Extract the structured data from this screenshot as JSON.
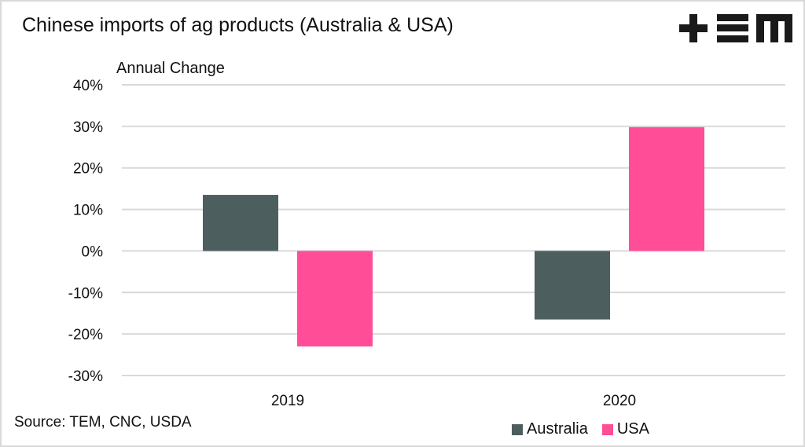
{
  "header": {
    "title": "Chinese imports of ag products (Australia & USA)",
    "logo": "tem-logo"
  },
  "source": "Source: TEM, CNC, USDA",
  "colors": {
    "australia": "#4d5e5f",
    "usa": "#ff4d97",
    "grid": "#d9d9d9"
  },
  "chart_data": {
    "type": "bar",
    "title": "Chinese imports of ag products (Australia & USA)",
    "xlabel": "",
    "ylabel": "Annual Change",
    "categories": [
      "2019",
      "2020"
    ],
    "series": [
      {
        "name": "Australia",
        "values": [
          13.5,
          -16.5
        ]
      },
      {
        "name": "USA",
        "values": [
          -23,
          29.8
        ]
      }
    ],
    "ylim": [
      -30,
      40
    ],
    "yticks": [
      40,
      30,
      20,
      10,
      0,
      -10,
      -20,
      -30
    ],
    "ytick_labels": [
      "40%",
      "30%",
      "20%",
      "10%",
      "0%",
      "-10%",
      "-20%",
      "-30%"
    ],
    "grid": true,
    "legend_position": "bottom-right"
  }
}
